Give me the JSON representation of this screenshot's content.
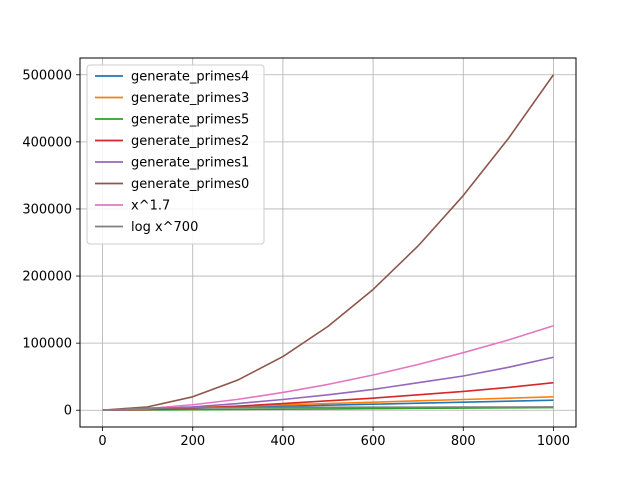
{
  "chart_data": {
    "type": "line",
    "title": "",
    "xlabel": "",
    "ylabel": "",
    "xlim": [
      -50,
      1050
    ],
    "ylim": [
      -25000,
      525000
    ],
    "xticks": [
      0,
      200,
      400,
      600,
      800,
      1000
    ],
    "yticks": [
      0,
      100000,
      200000,
      300000,
      400000,
      500000
    ],
    "grid": true,
    "legend_position": "top-left",
    "x": [
      0,
      100,
      200,
      300,
      400,
      500,
      600,
      700,
      800,
      900,
      1000
    ],
    "series": [
      {
        "name": "generate_primes4",
        "color": "#1f77b4",
        "values": [
          0,
          1500,
          3000,
          4500,
          6000,
          7500,
          9000,
          10500,
          12000,
          13500,
          15000
        ]
      },
      {
        "name": "generate_primes3",
        "color": "#ff7f0e",
        "values": [
          0,
          2000,
          4000,
          6000,
          8000,
          10000,
          12000,
          14000,
          16000,
          18000,
          20000
        ]
      },
      {
        "name": "generate_primes5",
        "color": "#2ca02c",
        "values": [
          0,
          400,
          800,
          1200,
          1600,
          2000,
          2400,
          2800,
          3200,
          3600,
          4000
        ]
      },
      {
        "name": "generate_primes2",
        "color": "#d62728",
        "values": [
          0,
          1000,
          3000,
          6000,
          10000,
          14000,
          18000,
          23000,
          28000,
          34000,
          41000
        ]
      },
      {
        "name": "generate_primes1",
        "color": "#9467bd",
        "values": [
          0,
          2000,
          5000,
          10000,
          16000,
          23000,
          31000,
          41000,
          51000,
          64000,
          79000
        ]
      },
      {
        "name": "generate_primes0",
        "color": "#8c564b",
        "values": [
          0,
          5000,
          20000,
          45000,
          80000,
          125000,
          180000,
          245000,
          320000,
          405000,
          500000
        ]
      },
      {
        "name": "x^1.7",
        "color": "#e377c2",
        "values": [
          0,
          2512,
          8165,
          16168,
          26497,
          38500,
          52535,
          68180,
          85780,
          104730,
          125890
        ]
      },
      {
        "name": "log x^700",
        "color": "#7f7f7f",
        "values": [
          0,
          3224,
          3709,
          3993,
          4194,
          4350,
          4478,
          4586,
          4679,
          4762,
          4835
        ]
      }
    ]
  }
}
